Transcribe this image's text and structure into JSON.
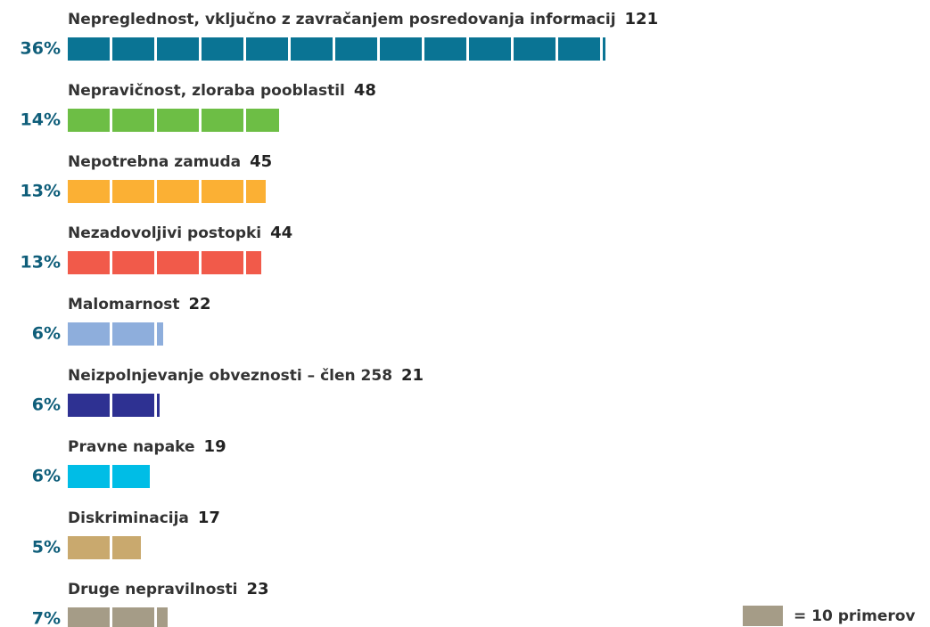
{
  "chart_data": {
    "type": "pictogram-bar",
    "categories": [
      "Nepreglednost, vključno z zavračanjem posredovanja informacij",
      "Nepravičnost, zloraba pooblastil",
      "Nepotrebna zamuda",
      "Nezadovoljivi postopki",
      "Malomarnost",
      "Neizpolnjevanje obveznosti – člen 258",
      "Pravne napake",
      "Diskriminacija",
      "Druge nepravilnosti"
    ],
    "values": [
      121,
      48,
      45,
      44,
      22,
      21,
      19,
      17,
      23
    ],
    "percentages": [
      "36%",
      "14%",
      "13%",
      "13%",
      "6%",
      "6%",
      "6%",
      "5%",
      "7%"
    ],
    "colors": [
      "#0a7494",
      "#6dbe45",
      "#fbb034",
      "#f15a4a",
      "#8eaedc",
      "#2e3192",
      "#00bde6",
      "#c9a96e",
      "#a59c87"
    ],
    "unit": 10,
    "legend": {
      "label": "= 10 primerov",
      "color": "#a59c87"
    }
  }
}
